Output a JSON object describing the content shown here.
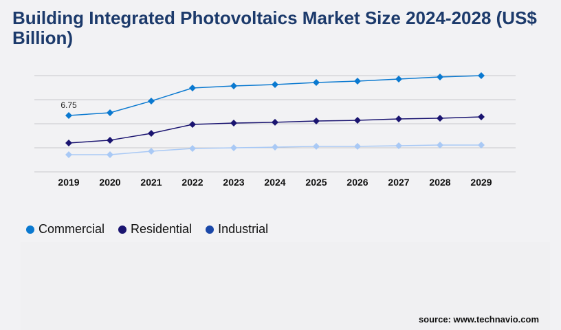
{
  "chart_data": {
    "type": "line",
    "title": "Building Integrated Photovoltaics Market Size 2024-2028 (US$ Billion)",
    "xlabel": "",
    "ylabel": "",
    "categories": [
      "2019",
      "2020",
      "2021",
      "2022",
      "2023",
      "2024",
      "2025",
      "2026",
      "2027",
      "2028",
      "2029"
    ],
    "ylim": [
      0,
      11.52
    ],
    "grid": true,
    "legend_position": "bottom-left",
    "series": [
      {
        "name": "Commercial",
        "color": "#0a79d0",
        "legend_color": "#0a79d0",
        "values": [
          6.75,
          7.08,
          8.48,
          10.04,
          10.29,
          10.45,
          10.7,
          10.86,
          11.11,
          11.36,
          11.52
        ]
      },
      {
        "name": "Residential",
        "color": "#1a1470",
        "legend_color": "#1a1470",
        "values": [
          3.46,
          3.79,
          4.61,
          5.68,
          5.84,
          5.93,
          6.09,
          6.17,
          6.34,
          6.42,
          6.58
        ]
      },
      {
        "name": "Industrial",
        "color": "#a9c9f5",
        "legend_color": "#1a47a8",
        "values": [
          2.06,
          2.06,
          2.47,
          2.8,
          2.88,
          2.96,
          3.05,
          3.05,
          3.13,
          3.21,
          3.21
        ]
      }
    ],
    "annotations": [
      {
        "series": "Commercial",
        "category": "2019",
        "text": "6.75"
      }
    ]
  },
  "source": "source: www.technavio.com"
}
